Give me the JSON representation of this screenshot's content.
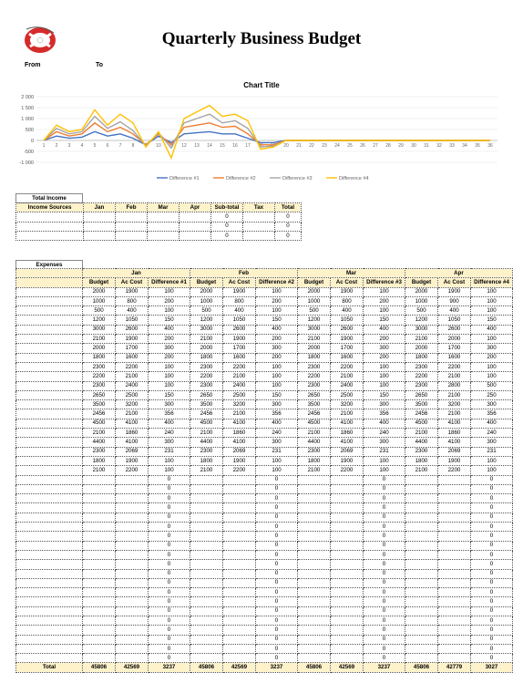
{
  "header": {
    "title": "Quarterly Business Budget",
    "from_label": "From",
    "to_label": "To"
  },
  "chart_data": {
    "type": "line",
    "title": "Chart Title",
    "x": [
      1,
      2,
      3,
      4,
      5,
      6,
      7,
      8,
      9,
      10,
      11,
      12,
      13,
      14,
      15,
      16,
      17,
      18,
      19,
      20,
      21,
      22,
      23,
      24,
      25,
      26,
      27,
      28,
      29,
      30,
      31,
      32,
      33,
      34,
      35,
      36
    ],
    "yticks": [
      "2 000",
      "1 500",
      "1 000",
      "500",
      "0",
      "-500",
      "-1 000"
    ],
    "ylim": [
      -1000,
      2000
    ],
    "series": [
      {
        "name": "Difference #1",
        "color": "#4472c4",
        "values": [
          0,
          200,
          100,
          150,
          400,
          200,
          300,
          100,
          -200,
          200,
          -100,
          300,
          350,
          400,
          300,
          300,
          100,
          -100,
          -100,
          0,
          0,
          0,
          0,
          0,
          0,
          0,
          0,
          0,
          0,
          0,
          0,
          0,
          0,
          0,
          0,
          0
        ]
      },
      {
        "name": "Difference #2",
        "color": "#ed7d31",
        "values": [
          0,
          400,
          200,
          300,
          800,
          400,
          600,
          300,
          -200,
          300,
          -200,
          600,
          700,
          800,
          600,
          650,
          300,
          -200,
          -200,
          0,
          0,
          0,
          0,
          0,
          0,
          0,
          0,
          0,
          0,
          0,
          0,
          0,
          0,
          0,
          0,
          0
        ]
      },
      {
        "name": "Difference #3",
        "color": "#a5a5a5",
        "values": [
          0,
          550,
          300,
          400,
          1100,
          550,
          850,
          450,
          -250,
          350,
          -350,
          800,
          1000,
          1200,
          800,
          900,
          550,
          -300,
          -250,
          0,
          0,
          0,
          0,
          0,
          0,
          0,
          0,
          0,
          0,
          0,
          0,
          0,
          0,
          0,
          0,
          0
        ]
      },
      {
        "name": "Difference #4",
        "color": "#ffc000",
        "values": [
          0,
          700,
          400,
          500,
          1400,
          700,
          1200,
          800,
          -300,
          400,
          -800,
          1000,
          1300,
          1600,
          1100,
          1200,
          900,
          -400,
          -300,
          0,
          0,
          0,
          0,
          0,
          0,
          0,
          0,
          0,
          0,
          0,
          0,
          0,
          0,
          0,
          0,
          0
        ]
      }
    ]
  },
  "income": {
    "section_label": "Total Income",
    "headers": [
      "Income Sources",
      "Jan",
      "Feb",
      "Mar",
      "Apr",
      "Sub-total",
      "Tax",
      "Total"
    ],
    "rows": [
      [
        "",
        "",
        "",
        "",
        "",
        "0",
        "",
        "0"
      ],
      [
        "",
        "",
        "",
        "",
        "",
        "0",
        "",
        "0"
      ],
      [
        "",
        "",
        "",
        "",
        "",
        "0",
        "",
        "0"
      ]
    ]
  },
  "expenses": {
    "section_label": "Expenses",
    "months": [
      "Jan",
      "Feb",
      "Mar",
      "Apr"
    ],
    "subheaders": [
      "Budget",
      "Ac Cost",
      "Difference #1",
      "Budget",
      "Ac Cost",
      "Difference #2",
      "Budget",
      "Ac Cost",
      "Difference #3",
      "Budget",
      "Ac Cost",
      "Difference #4"
    ],
    "rows": [
      [
        "2000",
        "1900",
        "100",
        "2000",
        "1900",
        "100",
        "2000",
        "1900",
        "100",
        "2000",
        "1900",
        "100"
      ],
      [
        "1000",
        "800",
        "200",
        "1000",
        "800",
        "200",
        "1000",
        "800",
        "200",
        "1000",
        "900",
        "100"
      ],
      [
        "500",
        "400",
        "100",
        "500",
        "400",
        "100",
        "500",
        "400",
        "100",
        "500",
        "400",
        "100"
      ],
      [
        "1200",
        "1050",
        "150",
        "1200",
        "1050",
        "150",
        "1200",
        "1050",
        "150",
        "1200",
        "1050",
        "150"
      ],
      [
        "3000",
        "2600",
        "400",
        "3000",
        "2600",
        "400",
        "3000",
        "2600",
        "400",
        "3000",
        "2600",
        "400"
      ],
      [
        "2100",
        "1900",
        "200",
        "2100",
        "1900",
        "200",
        "2100",
        "1900",
        "200",
        "2100",
        "2000",
        "100"
      ],
      [
        "2000",
        "1700",
        "300",
        "2000",
        "1700",
        "300",
        "2000",
        "1700",
        "300",
        "2000",
        "1700",
        "300"
      ],
      [
        "1800",
        "1600",
        "200",
        "1800",
        "1600",
        "200",
        "1800",
        "1600",
        "200",
        "1800",
        "1600",
        "200"
      ],
      [
        "2300",
        "2200",
        "100",
        "2300",
        "2200",
        "100",
        "2300",
        "2200",
        "100",
        "2300",
        "2200",
        "100"
      ],
      [
        "2200",
        "2100",
        "100",
        "2200",
        "2100",
        "100",
        "2200",
        "2100",
        "100",
        "2200",
        "2100",
        "100"
      ],
      [
        "2300",
        "2400",
        "100",
        "2300",
        "2400",
        "100",
        "2300",
        "2400",
        "100",
        "2300",
        "2800",
        "500"
      ],
      [
        "2650",
        "2500",
        "150",
        "2650",
        "2500",
        "150",
        "2650",
        "2500",
        "150",
        "2650",
        "2100",
        "250"
      ],
      [
        "3500",
        "3200",
        "300",
        "3500",
        "3200",
        "300",
        "3500",
        "3200",
        "300",
        "3500",
        "3200",
        "300"
      ],
      [
        "2456",
        "2100",
        "356",
        "2456",
        "2100",
        "356",
        "2456",
        "2100",
        "356",
        "2456",
        "2100",
        "356"
      ],
      [
        "4500",
        "4100",
        "400",
        "4500",
        "4100",
        "400",
        "4500",
        "4100",
        "400",
        "4500",
        "4100",
        "400"
      ],
      [
        "2100",
        "1860",
        "240",
        "2100",
        "1860",
        "240",
        "2100",
        "1860",
        "240",
        "2100",
        "1860",
        "240"
      ],
      [
        "4400",
        "4100",
        "300",
        "4400",
        "4100",
        "300",
        "4400",
        "4100",
        "300",
        "4400",
        "4100",
        "300"
      ],
      [
        "2300",
        "2069",
        "231",
        "2300",
        "2069",
        "231",
        "2300",
        "2069",
        "231",
        "2300",
        "2069",
        "231"
      ],
      [
        "1800",
        "1900",
        "100",
        "1800",
        "1900",
        "100",
        "1800",
        "1900",
        "100",
        "1800",
        "1900",
        "100"
      ],
      [
        "2100",
        "2200",
        "100",
        "2100",
        "2200",
        "100",
        "2100",
        "2200",
        "100",
        "2100",
        "2200",
        "100"
      ],
      [
        "",
        "",
        "0",
        "",
        "",
        "0",
        "",
        "",
        "0",
        "",
        "",
        "0"
      ],
      [
        "",
        "",
        "0",
        "",
        "",
        "0",
        "",
        "",
        "0",
        "",
        "",
        "0"
      ],
      [
        "",
        "",
        "0",
        "",
        "",
        "0",
        "",
        "",
        "0",
        "",
        "",
        "0"
      ],
      [
        "",
        "",
        "0",
        "",
        "",
        "0",
        "",
        "",
        "0",
        "",
        "",
        "0"
      ],
      [
        "",
        "",
        "0",
        "",
        "",
        "0",
        "",
        "",
        "0",
        "",
        "",
        "0"
      ],
      [
        "",
        "",
        "0",
        "",
        "",
        "0",
        "",
        "",
        "0",
        "",
        "",
        "0"
      ],
      [
        "",
        "",
        "0",
        "",
        "",
        "0",
        "",
        "",
        "0",
        "",
        "",
        "0"
      ],
      [
        "",
        "",
        "0",
        "",
        "",
        "0",
        "",
        "",
        "0",
        "",
        "",
        "0"
      ],
      [
        "",
        "",
        "0",
        "",
        "",
        "0",
        "",
        "",
        "0",
        "",
        "",
        "0"
      ],
      [
        "",
        "",
        "0",
        "",
        "",
        "0",
        "",
        "",
        "0",
        "",
        "",
        "0"
      ],
      [
        "",
        "",
        "0",
        "",
        "",
        "0",
        "",
        "",
        "0",
        "",
        "",
        "0"
      ],
      [
        "",
        "",
        "0",
        "",
        "",
        "0",
        "",
        "",
        "0",
        "",
        "",
        "0"
      ],
      [
        "",
        "",
        "0",
        "",
        "",
        "0",
        "",
        "",
        "0",
        "",
        "",
        "0"
      ],
      [
        "",
        "",
        "0",
        "",
        "",
        "0",
        "",
        "",
        "0",
        "",
        "",
        "0"
      ],
      [
        "",
        "",
        "0",
        "",
        "",
        "0",
        "",
        "",
        "0",
        "",
        "",
        "0"
      ],
      [
        "",
        "",
        "0",
        "",
        "",
        "0",
        "",
        "",
        "0",
        "",
        "",
        "0"
      ],
      [
        "",
        "",
        "0",
        "",
        "",
        "0",
        "",
        "",
        "0",
        "",
        "",
        "0"
      ],
      [
        "",
        "",
        "0",
        "",
        "",
        "0",
        "",
        "",
        "0",
        "",
        "",
        "0"
      ],
      [
        "",
        "",
        "0",
        "",
        "",
        "0",
        "",
        "",
        "0",
        "",
        "",
        "0"
      ],
      [
        "",
        "",
        "0",
        "",
        "",
        "0",
        "",
        "",
        "0",
        "",
        "",
        "0"
      ]
    ],
    "total_label": "Total",
    "totals": [
      "45806",
      "42569",
      "3237",
      "45806",
      "42569",
      "3237",
      "45806",
      "42569",
      "3237",
      "45806",
      "42779",
      "3027"
    ]
  }
}
